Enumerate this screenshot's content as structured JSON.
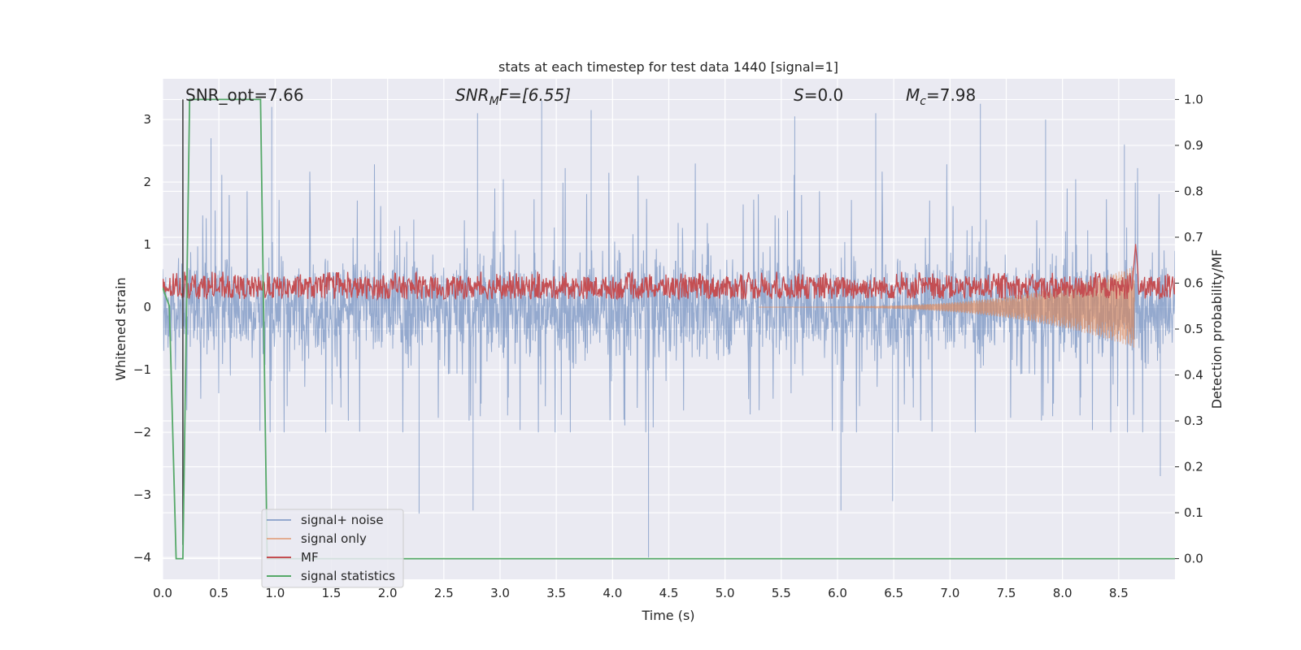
{
  "chart_data": {
    "type": "line",
    "title": "stats at each timestep for test data 1440 [signal=1]",
    "xlabel": "Time (s)",
    "ylabel": "Whitened strain",
    "ylabel_right": "Detection probability/MF",
    "xlim": [
      0.0,
      9.0
    ],
    "ylim": [
      -4.35,
      3.65
    ],
    "ylim_right": [
      -0.045,
      1.045
    ],
    "x_ticks": [
      0.0,
      0.5,
      1.0,
      1.5,
      2.0,
      2.5,
      3.0,
      3.5,
      4.0,
      4.5,
      5.0,
      5.5,
      6.0,
      6.5,
      7.0,
      7.5,
      8.0,
      8.5
    ],
    "x_tick_labels": [
      "0.0",
      "0.5",
      "1.0",
      "1.5",
      "2.0",
      "2.5",
      "3.0",
      "3.5",
      "4.0",
      "4.5",
      "5.0",
      "5.5",
      "6.0",
      "6.5",
      "7.0",
      "7.5",
      "8.0",
      "8.5"
    ],
    "y_ticks": [
      -4,
      -3,
      -2,
      -1,
      0,
      1,
      2,
      3
    ],
    "y_tick_labels": [
      "−4",
      "−3",
      "−2",
      "−1",
      "0",
      "1",
      "2",
      "3"
    ],
    "y_ticks_right": [
      0.0,
      0.1,
      0.2,
      0.3,
      0.4,
      0.5,
      0.6,
      0.7,
      0.8,
      0.9,
      1.0
    ],
    "y_tick_labels_right": [
      "0.0",
      "0.1",
      "0.2",
      "0.3",
      "0.4",
      "0.5",
      "0.6",
      "0.7",
      "0.8",
      "0.9",
      "1.0"
    ],
    "grid": true,
    "background": "#eaeaf2",
    "annotations": {
      "snr_opt": "SNR_opt=7.66",
      "snr_mf_base": "SNR",
      "snr_mf_sub": "M",
      "snr_mf_rest": "F=[6.55]",
      "s_var": "S",
      "s_value": "=0.0",
      "mc_var": "M",
      "mc_sub": "c",
      "mc_value": "=7.98"
    },
    "marker_line_x": 0.18,
    "legend": {
      "position": "lower-left",
      "entries": [
        {
          "label": "signal+ noise",
          "color": "#4c72b0"
        },
        {
          "label": "signal only",
          "color": "#dd8452"
        },
        {
          "label": "MF",
          "color": "#c44e52"
        },
        {
          "label": "signal statistics",
          "color": "#55a868"
        }
      ]
    },
    "series": [
      {
        "name": "signal+ noise",
        "color": "#4c72b0",
        "axis": "left",
        "type": "noise",
        "envelope_typical": [
          -1.5,
          1.8
        ],
        "peaks": [
          {
            "x": 0.43,
            "y": 2.7
          },
          {
            "x": 0.97,
            "y": 3.2
          },
          {
            "x": 2.8,
            "y": 3.1
          },
          {
            "x": 3.37,
            "y": 3.3
          },
          {
            "x": 3.81,
            "y": 3.15
          },
          {
            "x": 5.62,
            "y": 3.05
          },
          {
            "x": 6.34,
            "y": 3.1
          },
          {
            "x": 7.27,
            "y": 3.25
          },
          {
            "x": 7.85,
            "y": 3.0
          },
          {
            "x": 8.55,
            "y": 2.6
          }
        ],
        "troughs": [
          {
            "x": 2.28,
            "y": -3.3
          },
          {
            "x": 2.76,
            "y": -3.25
          },
          {
            "x": 4.32,
            "y": -4.0
          },
          {
            "x": 6.03,
            "y": -3.25
          },
          {
            "x": 6.49,
            "y": -3.1
          },
          {
            "x": 8.87,
            "y": -2.7
          }
        ]
      },
      {
        "name": "signal only",
        "color": "#dd8452",
        "axis": "left",
        "type": "chirp",
        "start_x": 5.3,
        "end_x": 8.64,
        "peak_amplitude": 0.65
      },
      {
        "name": "MF",
        "color": "#c44e52",
        "axis": "right",
        "type": "band",
        "band": [
          0.565,
          0.615
        ],
        "spike": {
          "x": 8.65,
          "y": 0.685
        }
      },
      {
        "name": "signal statistics",
        "color": "#55a868",
        "axis": "right",
        "type": "line",
        "x": [
          0.0,
          0.06,
          0.12,
          0.18,
          0.24,
          0.87,
          0.93,
          9.0
        ],
        "y": [
          0.59,
          0.55,
          0.0,
          0.0,
          1.0,
          1.0,
          0.0,
          0.0
        ]
      }
    ]
  }
}
